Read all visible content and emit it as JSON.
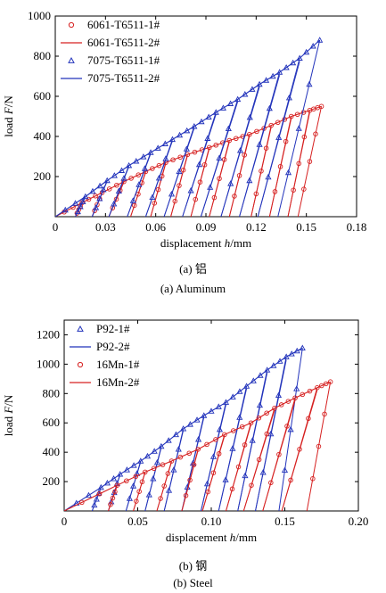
{
  "panels": [
    {
      "caption_cn": "(a) 铝",
      "caption_en": "(a) Aluminum"
    },
    {
      "caption_cn": "(b) 钢",
      "caption_en": "(b) Steel"
    }
  ],
  "chart_data": [
    {
      "type": "line",
      "xlabel_prefix": "displacement ",
      "xlabel_var": "h",
      "xlabel_unit": "/mm",
      "ylabel_prefix": "load ",
      "ylabel_var": "F",
      "ylabel_unit": "/N",
      "xlim": [
        0,
        0.18
      ],
      "ylim": [
        0,
        1000
      ],
      "xticks": [
        "0",
        "0.03",
        "0.06",
        "0.09",
        "0.12",
        "0.15",
        "0.18"
      ],
      "yticks": [
        "200",
        "400",
        "600",
        "800",
        "1000"
      ],
      "legend_position": "top-left",
      "series": [
        {
          "name": "6061-T6511-1#",
          "style": "marker-circle",
          "color": "#d62020",
          "peaks": [
            [
              0.016,
              70
            ],
            [
              0.028,
              120
            ],
            [
              0.041,
              175
            ],
            [
              0.054,
              225
            ],
            [
              0.066,
              270
            ],
            [
              0.079,
              310
            ],
            [
              0.092,
              345
            ],
            [
              0.104,
              380
            ],
            [
              0.116,
              410
            ],
            [
              0.129,
              455
            ],
            [
              0.141,
              500
            ],
            [
              0.152,
              530
            ],
            [
              0.159,
              550
            ]
          ],
          "unload_x": [
            0.012,
            0.022,
            0.032,
            0.045,
            0.057,
            0.069,
            0.081,
            0.092,
            0.104,
            0.117,
            0.128,
            0.139,
            0.145
          ]
        },
        {
          "name": "6061-T6511-2#",
          "style": "line",
          "color": "#d62020",
          "peaks": [
            [
              0.016,
              70
            ],
            [
              0.028,
              120
            ],
            [
              0.041,
              175
            ],
            [
              0.054,
              225
            ],
            [
              0.066,
              270
            ],
            [
              0.079,
              310
            ],
            [
              0.092,
              345
            ],
            [
              0.104,
              380
            ],
            [
              0.116,
              410
            ],
            [
              0.129,
              455
            ],
            [
              0.141,
              500
            ],
            [
              0.152,
              530
            ],
            [
              0.159,
              550
            ]
          ],
          "unload_x": [
            0.012,
            0.022,
            0.032,
            0.045,
            0.057,
            0.069,
            0.081,
            0.092,
            0.104,
            0.117,
            0.128,
            0.139,
            0.145
          ]
        },
        {
          "name": "7075-T6511-1#",
          "style": "marker-triangle",
          "color": "#2233bb",
          "peaks": [
            [
              0.018,
              100
            ],
            [
              0.031,
              180
            ],
            [
              0.044,
              255
            ],
            [
              0.057,
              320
            ],
            [
              0.07,
              385
            ],
            [
              0.083,
              450
            ],
            [
              0.096,
              520
            ],
            [
              0.109,
              585
            ],
            [
              0.122,
              660
            ],
            [
              0.134,
              720
            ],
            [
              0.146,
              790
            ],
            [
              0.158,
              880
            ]
          ],
          "unload_x": [
            0.012,
            0.022,
            0.032,
            0.043,
            0.054,
            0.065,
            0.076,
            0.087,
            0.099,
            0.11,
            0.121,
            0.133
          ]
        },
        {
          "name": "7075-T6511-2#",
          "style": "line",
          "color": "#2233bb",
          "peaks": [
            [
              0.018,
              100
            ],
            [
              0.031,
              180
            ],
            [
              0.044,
              255
            ],
            [
              0.057,
              320
            ],
            [
              0.07,
              385
            ],
            [
              0.083,
              450
            ],
            [
              0.096,
              520
            ],
            [
              0.109,
              585
            ],
            [
              0.122,
              660
            ],
            [
              0.134,
              720
            ],
            [
              0.146,
              790
            ],
            [
              0.158,
              880
            ]
          ],
          "unload_x": [
            0.012,
            0.022,
            0.032,
            0.043,
            0.054,
            0.065,
            0.076,
            0.087,
            0.099,
            0.11,
            0.121,
            0.133
          ]
        }
      ]
    },
    {
      "type": "line",
      "xlabel_prefix": "displacement ",
      "xlabel_var": "h",
      "xlabel_unit": "/mm",
      "ylabel_prefix": "load ",
      "ylabel_var": "F",
      "ylabel_unit": "/N",
      "xlim": [
        0,
        0.2
      ],
      "ylim": [
        0,
        1300
      ],
      "xticks": [
        "0",
        "0.05",
        "0.10",
        "0.15",
        "0.20"
      ],
      "yticks": [
        "200",
        "400",
        "600",
        "800",
        "1000",
        "1200"
      ],
      "legend_position": "top-left",
      "series": [
        {
          "name": "P92-1#",
          "style": "marker-triangle",
          "color": "#2233bb",
          "peaks": [
            [
              0.025,
              160
            ],
            [
              0.038,
              250
            ],
            [
              0.052,
              340
            ],
            [
              0.066,
              440
            ],
            [
              0.081,
              560
            ],
            [
              0.095,
              650
            ],
            [
              0.11,
              740
            ],
            [
              0.124,
              850
            ],
            [
              0.138,
              960
            ],
            [
              0.151,
              1050
            ],
            [
              0.162,
              1110
            ]
          ],
          "unload_x": [
            0.019,
            0.03,
            0.042,
            0.055,
            0.068,
            0.08,
            0.093,
            0.105,
            0.118,
            0.13,
            0.146
          ]
        },
        {
          "name": "P92-2#",
          "style": "line",
          "color": "#2233bb",
          "peaks": [
            [
              0.025,
              160
            ],
            [
              0.038,
              250
            ],
            [
              0.052,
              340
            ],
            [
              0.066,
              440
            ],
            [
              0.081,
              560
            ],
            [
              0.095,
              650
            ],
            [
              0.11,
              740
            ],
            [
              0.124,
              850
            ],
            [
              0.138,
              960
            ],
            [
              0.151,
              1050
            ],
            [
              0.162,
              1110
            ]
          ],
          "unload_x": [
            0.019,
            0.03,
            0.042,
            0.055,
            0.068,
            0.08,
            0.093,
            0.105,
            0.118,
            0.13,
            0.146
          ]
        },
        {
          "name": "16Mn-1#",
          "style": "marker-circle",
          "color": "#d62020",
          "peaks": [
            [
              0.036,
              175
            ],
            [
              0.055,
              265
            ],
            [
              0.073,
              340
            ],
            [
              0.091,
              420
            ],
            [
              0.109,
              520
            ],
            [
              0.127,
              600
            ],
            [
              0.143,
              700
            ],
            [
              0.157,
              770
            ],
            [
              0.172,
              840
            ],
            [
              0.181,
              880
            ]
          ],
          "unload_x": [
            0.03,
            0.047,
            0.063,
            0.08,
            0.094,
            0.11,
            0.122,
            0.135,
            0.148,
            0.165
          ]
        },
        {
          "name": "16Mn-2#",
          "style": "line",
          "color": "#d62020",
          "peaks": [
            [
              0.036,
              175
            ],
            [
              0.055,
              265
            ],
            [
              0.073,
              340
            ],
            [
              0.091,
              420
            ],
            [
              0.109,
              520
            ],
            [
              0.127,
              600
            ],
            [
              0.143,
              700
            ],
            [
              0.157,
              770
            ],
            [
              0.172,
              840
            ],
            [
              0.181,
              880
            ]
          ],
          "unload_x": [
            0.03,
            0.047,
            0.063,
            0.08,
            0.094,
            0.11,
            0.122,
            0.135,
            0.148,
            0.165
          ]
        }
      ]
    }
  ]
}
